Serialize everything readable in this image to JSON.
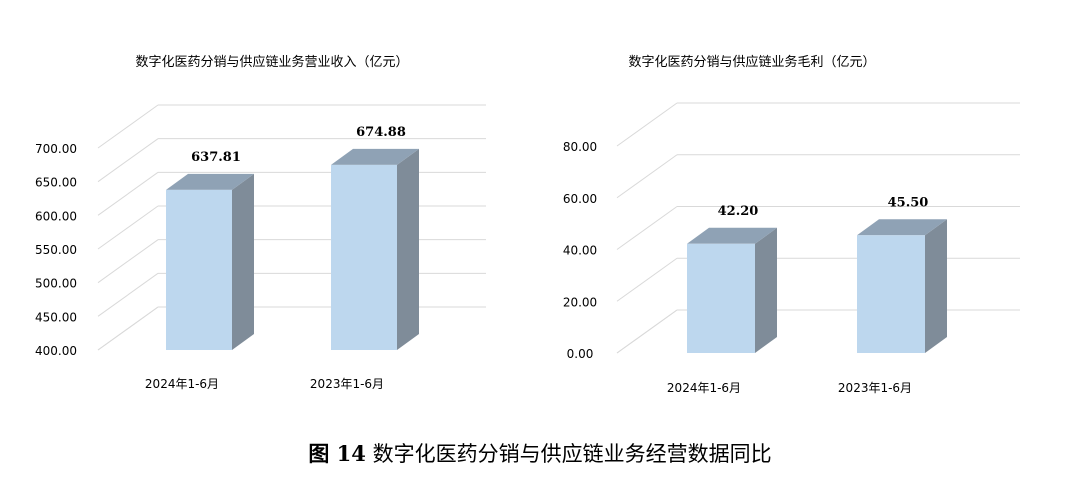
{
  "chart_data": [
    {
      "type": "bar",
      "title": "数字化医药分销与供应链业务营业收入（亿元）",
      "categories": [
        "2024年1-6月",
        "2023年1-6月"
      ],
      "values": [
        637.81,
        674.88
      ],
      "value_labels": [
        "637.81",
        "674.88"
      ],
      "yticks": [
        "400.00",
        "450.00",
        "500.00",
        "550.00",
        "600.00",
        "650.00",
        "700.00"
      ],
      "ylim": [
        400,
        700
      ],
      "grid": true,
      "style": "3d",
      "colors": {
        "front": "#BDD7EE",
        "side": "#7F8C99",
        "top": "#8FA2B5"
      }
    },
    {
      "type": "bar",
      "title": "数字化医药分销与供应链业务毛利（亿元）",
      "categories": [
        "2024年1-6月",
        "2023年1-6月"
      ],
      "values": [
        42.2,
        45.5
      ],
      "value_labels": [
        "42.20",
        "45.50"
      ],
      "yticks": [
        "0.00",
        "20.00",
        "40.00",
        "60.00",
        "80.00"
      ],
      "ylim": [
        0,
        80
      ],
      "grid": true,
      "style": "3d",
      "colors": {
        "front": "#BDD7EE",
        "side": "#7F8C99",
        "top": "#8FA2B5"
      }
    }
  ],
  "caption": {
    "label": "图 14",
    "text": "数字化医药分销与供应链业务经营数据同比"
  }
}
